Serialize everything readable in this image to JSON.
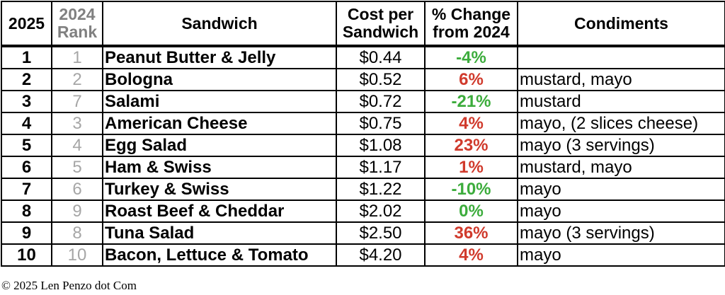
{
  "colors": {
    "decrease": "#3cac3c",
    "increase": "#d03a2c",
    "neutral": "#3cac3c",
    "prior_rank": "#a6a6a6"
  },
  "headers": {
    "rank_2025": "2025",
    "rank_2024_line1": "2024",
    "rank_2024_line2": "Rank",
    "sandwich": "Sandwich",
    "cost_line1": "Cost per",
    "cost_line2": "Sandwich",
    "change_line1": "% Change",
    "change_line2": "from 2024",
    "condiments": "Condiments"
  },
  "rows": [
    {
      "rank": "1",
      "prev": "1",
      "name": "Peanut Butter & Jelly",
      "cost": "$0.44",
      "change": "-4%",
      "direction": "decrease",
      "condiments": ""
    },
    {
      "rank": "2",
      "prev": "2",
      "name": "Bologna",
      "cost": "$0.52",
      "change": "6%",
      "direction": "increase",
      "condiments": "mustard, mayo"
    },
    {
      "rank": "3",
      "prev": "7",
      "name": "Salami",
      "cost": "$0.72",
      "change": "-21%",
      "direction": "decrease",
      "condiments": "mustard"
    },
    {
      "rank": "4",
      "prev": "3",
      "name": "American Cheese",
      "cost": "$0.75",
      "change": "4%",
      "direction": "increase",
      "condiments": "mayo, (2 slices cheese)"
    },
    {
      "rank": "5",
      "prev": "4",
      "name": "Egg Salad",
      "cost": "$1.08",
      "change": "23%",
      "direction": "increase",
      "condiments": "mayo (3 servings)"
    },
    {
      "rank": "6",
      "prev": "5",
      "name": "Ham & Swiss",
      "cost": "$1.17",
      "change": "1%",
      "direction": "increase",
      "condiments": "mustard, mayo"
    },
    {
      "rank": "7",
      "prev": "6",
      "name": "Turkey & Swiss",
      "cost": "$1.22",
      "change": "-10%",
      "direction": "decrease",
      "condiments": "mayo"
    },
    {
      "rank": "8",
      "prev": "9",
      "name": "Roast Beef & Cheddar",
      "cost": "$2.02",
      "change": "0%",
      "direction": "neutral",
      "condiments": "mayo"
    },
    {
      "rank": "9",
      "prev": "8",
      "name": "Tuna Salad",
      "cost": "$2.50",
      "change": "36%",
      "direction": "increase",
      "condiments": "mayo (3 servings)"
    },
    {
      "rank": "10",
      "prev": "10",
      "name": "Bacon, Lettuce & Tomato",
      "cost": "$4.20",
      "change": "4%",
      "direction": "increase",
      "condiments": "mayo"
    }
  ],
  "footer": {
    "copyright": "© 2025 Len Penzo dot Com"
  }
}
